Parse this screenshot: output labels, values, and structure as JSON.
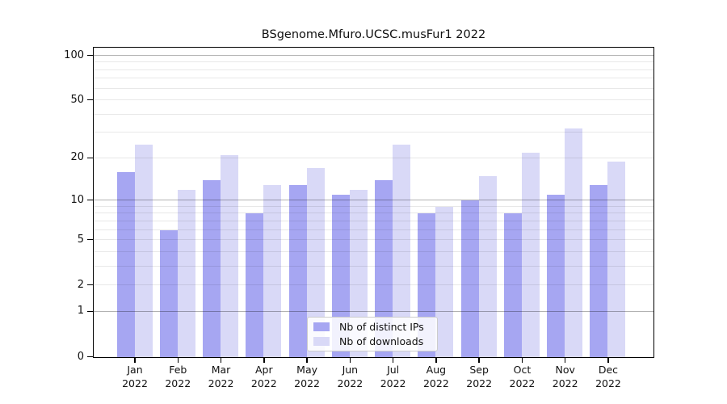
{
  "title": "BSgenome.Mfuro.UCSC.musFur1 2022",
  "chart_data": {
    "type": "bar",
    "title": "BSgenome.Mfuro.UCSC.musFur1 2022",
    "y_scale": "log1p",
    "ylim": [
      0,
      110
    ],
    "y_axis_ticks": [
      0,
      1,
      2,
      5,
      10,
      20,
      50,
      100
    ],
    "y_major_gridlines": [
      1,
      10,
      100
    ],
    "y_minor_gridlines": [
      2,
      3,
      4,
      5,
      6,
      7,
      8,
      9,
      20,
      30,
      40,
      50,
      60,
      70,
      80,
      90
    ],
    "grid": true,
    "legend_position": "bottom-center-overlay",
    "x_months": [
      "Jan",
      "Feb",
      "Mar",
      "Apr",
      "May",
      "Jun",
      "Jul",
      "Aug",
      "Sep",
      "Oct",
      "Nov",
      "Dec"
    ],
    "x_year": "2022",
    "categories": [
      "Jan 2022",
      "Feb 2022",
      "Mar 2022",
      "Apr 2022",
      "May 2022",
      "Jun 2022",
      "Jul 2022",
      "Aug 2022",
      "Sep 2022",
      "Oct 2022",
      "Nov 2022",
      "Dec 2022"
    ],
    "series": [
      {
        "name": "Nb of distinct IPs",
        "color": "#a6a6f2",
        "values": [
          16,
          6,
          14,
          8,
          13,
          11,
          14,
          8,
          10,
          8,
          11,
          13
        ]
      },
      {
        "name": "Nb of downloads",
        "color": "#d9d9f7",
        "values": [
          25,
          12,
          21,
          13,
          17,
          12,
          25,
          9,
          15,
          22,
          32,
          19
        ]
      }
    ]
  },
  "colors": {
    "major_grid": "rgba(0,0,0,0.30)",
    "minor_grid": "rgba(0,0,0,0.09)",
    "spine": "#000000",
    "background": "#ffffff"
  }
}
